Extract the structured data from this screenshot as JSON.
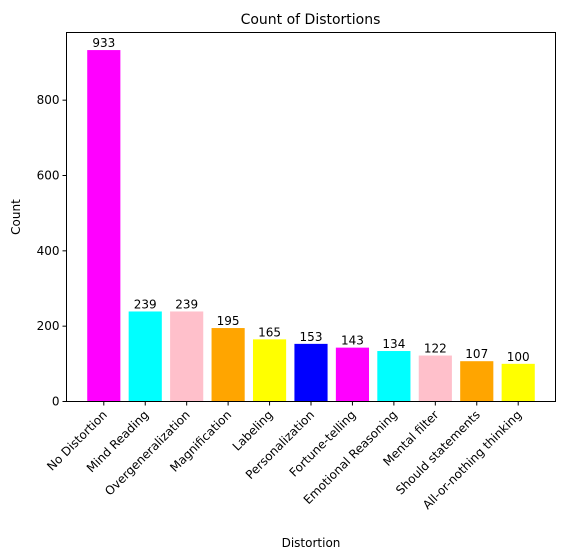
{
  "chart_data": {
    "type": "bar",
    "title": "Count of Distortions",
    "xlabel": "Distortion",
    "ylabel": "Count",
    "categories": [
      "No Distortion",
      "Mind Reading",
      "Overgeneralization",
      "Magnification",
      "Labeling",
      "Personalization",
      "Fortune-telling",
      "Emotional Reasoning",
      "Mental filter",
      "Should statements",
      "All-or-nothing thinking"
    ],
    "values": [
      933,
      239,
      239,
      195,
      165,
      153,
      143,
      134,
      122,
      107,
      100
    ],
    "colors": [
      "#ff00ff",
      "#00ffff",
      "#ffc0cb",
      "#ffa500",
      "#ffff00",
      "#0000ff",
      "#ff00ff",
      "#00ffff",
      "#ffc0cb",
      "#ffa500",
      "#ffff00"
    ],
    "ylim": [
      0,
      979.65
    ],
    "yticks": [
      0,
      200,
      400,
      600,
      800
    ],
    "grid": false,
    "legend": "none"
  }
}
